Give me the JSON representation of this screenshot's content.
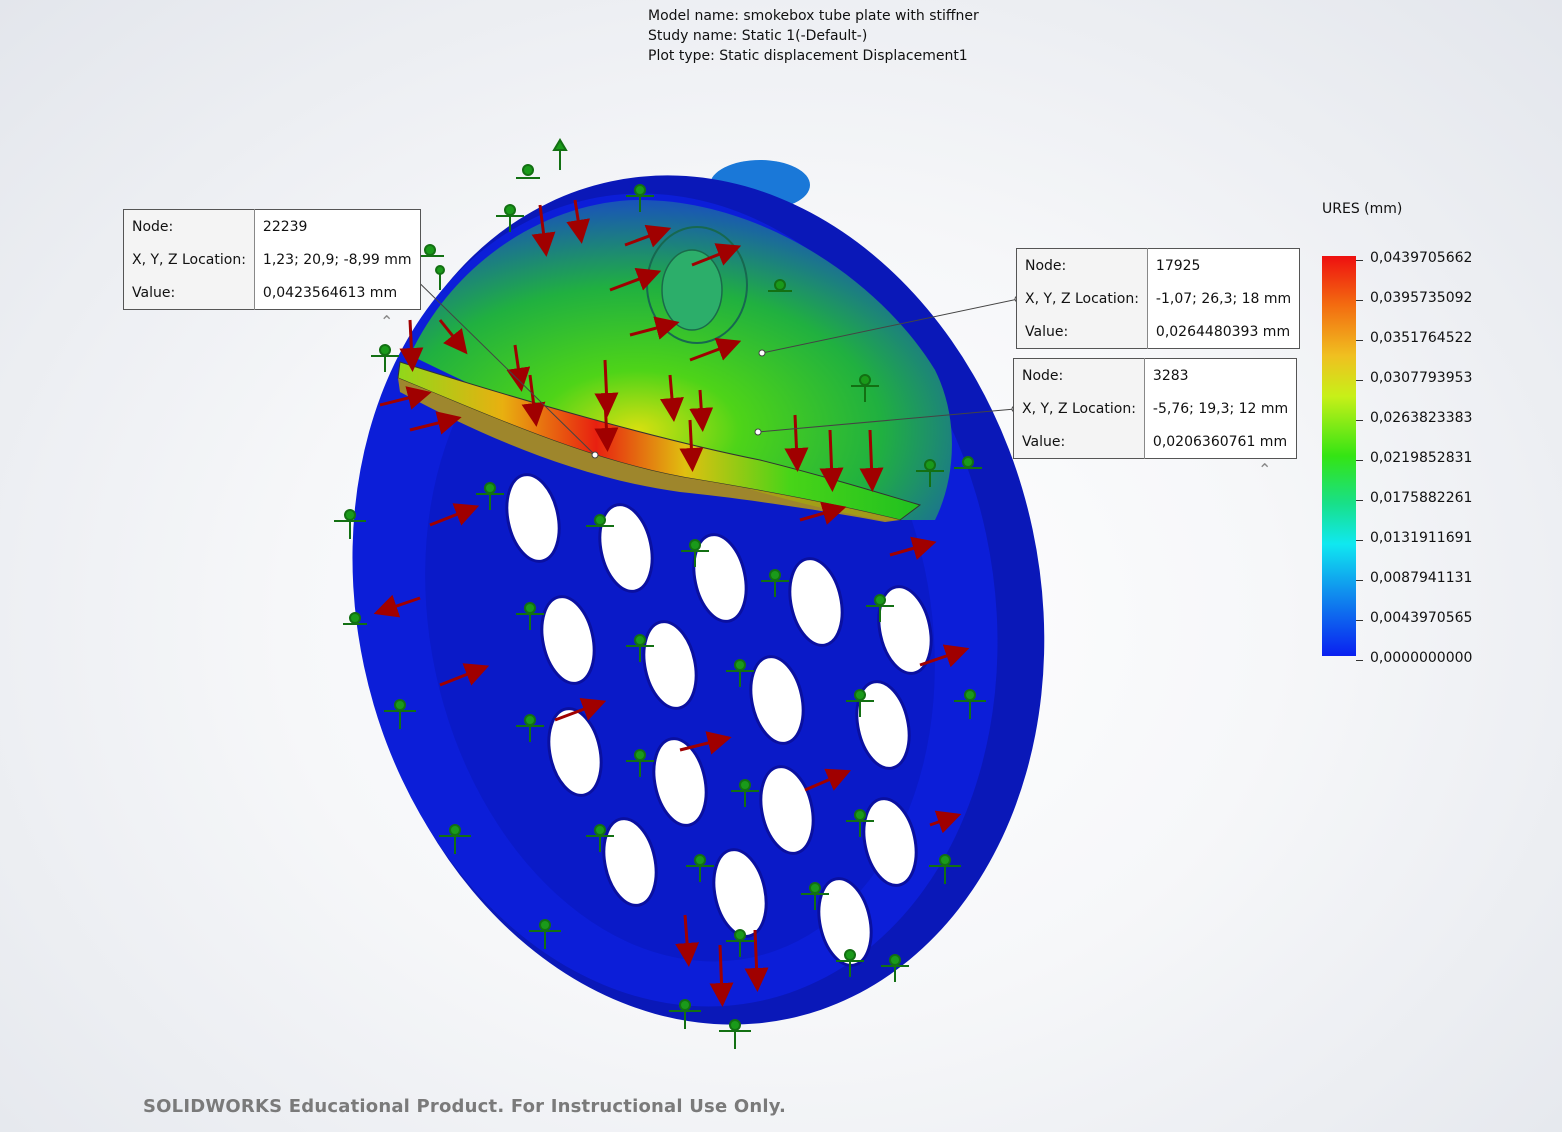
{
  "header": {
    "model_name": "Model name: smokebox tube plate with stiffner",
    "study_name": "Study name: Static 1(-Default-)",
    "plot_type": "Plot type: Static displacement Displacement1"
  },
  "probes": [
    {
      "node_label": "Node:",
      "node": "22239",
      "loc_label": "X, Y, Z Location:",
      "location": "1,23; 20,9; -8,99 mm",
      "value_label": "Value:",
      "value": "0,0423564613 mm"
    },
    {
      "node_label": "Node:",
      "node": "17925",
      "loc_label": "X, Y, Z Location:",
      "location": "-1,07; 26,3; 18 mm",
      "value_label": "Value:",
      "value": "0,0264480393 mm"
    },
    {
      "node_label": "Node:",
      "node": "3283",
      "loc_label": "X, Y, Z Location:",
      "location": "-5,76; 19,3; 12 mm",
      "value_label": "Value:",
      "value": "0,0206360761 mm"
    }
  ],
  "legend": {
    "title": "URES (mm)",
    "labels": [
      "0,0439705662",
      "0,0395735092",
      "0,0351764522",
      "0,0307793953",
      "0,0263823383",
      "0,0219852831",
      "0,0175882261",
      "0,0131911691",
      "0,0087941131",
      "0,0043970565",
      "0,0000000000"
    ],
    "colors": {
      "max": "#ee1010",
      "high": "#f0c020",
      "mid": "#34e414",
      "low": "#10e8f0",
      "min": "#0a20f0"
    }
  },
  "watermark": "SOLIDWORKS Educational Product. For Instructional Use Only.",
  "icons": {
    "collapse": "chevron-up-icon",
    "fixture": "fixture-arrow-icon",
    "load": "force-arrow-icon"
  }
}
